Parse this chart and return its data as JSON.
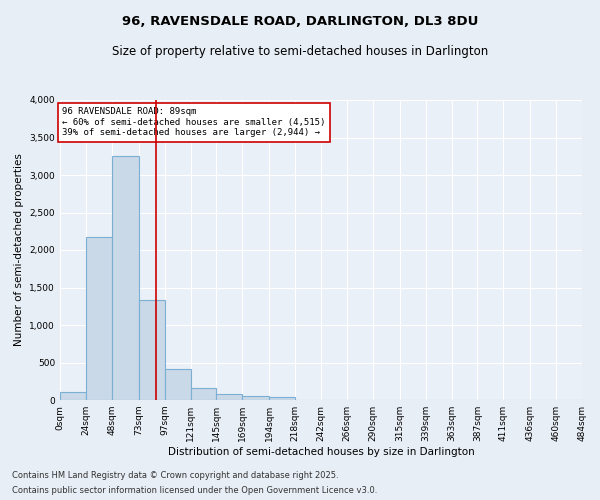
{
  "title": "96, RAVENSDALE ROAD, DARLINGTON, DL3 8DU",
  "subtitle": "Size of property relative to semi-detached houses in Darlington",
  "xlabel": "Distribution of semi-detached houses by size in Darlington",
  "ylabel": "Number of semi-detached properties",
  "bins": [
    0,
    24,
    48,
    73,
    97,
    121,
    145,
    169,
    194,
    218,
    242,
    266,
    290,
    315,
    339,
    363,
    387,
    411,
    436,
    460,
    484
  ],
  "bin_labels": [
    "0sqm",
    "24sqm",
    "48sqm",
    "73sqm",
    "97sqm",
    "121sqm",
    "145sqm",
    "169sqm",
    "194sqm",
    "218sqm",
    "242sqm",
    "266sqm",
    "290sqm",
    "315sqm",
    "339sqm",
    "363sqm",
    "387sqm",
    "411sqm",
    "436sqm",
    "460sqm",
    "484sqm"
  ],
  "bar_heights": [
    110,
    2170,
    3250,
    1340,
    410,
    165,
    80,
    55,
    40,
    0,
    0,
    0,
    0,
    0,
    0,
    0,
    0,
    0,
    0,
    0
  ],
  "bar_color": "#c9d9e8",
  "bar_edge_color": "#7bafd4",
  "vline_x": 89,
  "vline_color": "#cc0000",
  "ylim": [
    0,
    4000
  ],
  "yticks": [
    0,
    500,
    1000,
    1500,
    2000,
    2500,
    3000,
    3500,
    4000
  ],
  "annotation_text": "96 RAVENSDALE ROAD: 89sqm\n← 60% of semi-detached houses are smaller (4,515)\n39% of semi-detached houses are larger (2,944) →",
  "annotation_box_color": "#ffffff",
  "annotation_box_edge": "#cc0000",
  "footer1": "Contains HM Land Registry data © Crown copyright and database right 2025.",
  "footer2": "Contains public sector information licensed under the Open Government Licence v3.0.",
  "bg_color": "#e8eef5",
  "plot_bg_color": "#eaf0f7",
  "grid_color": "#ffffff",
  "title_fontsize": 9.5,
  "subtitle_fontsize": 8.5,
  "label_fontsize": 7.5,
  "tick_fontsize": 6.5,
  "footer_fontsize": 6,
  "annot_fontsize": 6.5
}
